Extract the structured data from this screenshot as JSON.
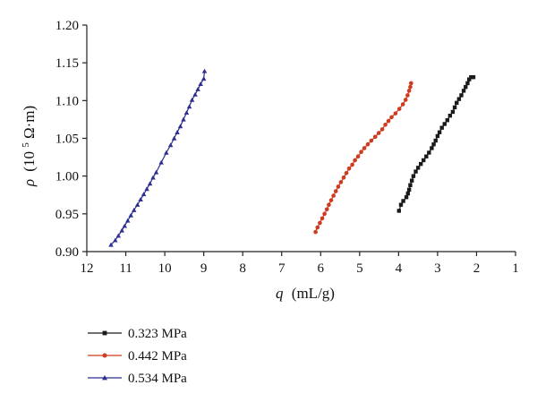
{
  "chart_data": {
    "type": "scatter",
    "title": "",
    "xlabel_var": "q",
    "xlabel_unit": "(mL/g)",
    "ylabel_var": "ρ",
    "ylabel_unit_open": "(10",
    "ylabel_unit_exp": "5",
    "ylabel_unit_close": " Ω·m)",
    "x_reversed": true,
    "xlim": [
      12,
      1
    ],
    "ylim": [
      0.9,
      1.2
    ],
    "x_ticks": [
      "12",
      "11",
      "10",
      "9",
      "8",
      "7",
      "6",
      "5",
      "4",
      "3",
      "2",
      "1"
    ],
    "y_ticks": [
      "0.90",
      "0.95",
      "1.00",
      "1.05",
      "1.10",
      "1.15",
      "1.20"
    ],
    "grid": false,
    "legend_position": "bottom-left",
    "series": [
      {
        "name": "0.323 MPa",
        "color": "#1a1a1a",
        "marker": "square",
        "points": [
          [
            3.99,
            0.954
          ],
          [
            3.94,
            0.962
          ],
          [
            3.88,
            0.967
          ],
          [
            3.8,
            0.972
          ],
          [
            3.76,
            0.977
          ],
          [
            3.73,
            0.982
          ],
          [
            3.7,
            0.988
          ],
          [
            3.66,
            0.994
          ],
          [
            3.62,
            1.0
          ],
          [
            3.56,
            1.006
          ],
          [
            3.5,
            1.011
          ],
          [
            3.43,
            1.016
          ],
          [
            3.36,
            1.021
          ],
          [
            3.29,
            1.026
          ],
          [
            3.22,
            1.031
          ],
          [
            3.15,
            1.037
          ],
          [
            3.1,
            1.042
          ],
          [
            3.05,
            1.047
          ],
          [
            3.0,
            1.053
          ],
          [
            2.95,
            1.058
          ],
          [
            2.89,
            1.064
          ],
          [
            2.82,
            1.069
          ],
          [
            2.75,
            1.074
          ],
          [
            2.68,
            1.08
          ],
          [
            2.61,
            1.085
          ],
          [
            2.56,
            1.091
          ],
          [
            2.51,
            1.097
          ],
          [
            2.45,
            1.102
          ],
          [
            2.39,
            1.107
          ],
          [
            2.33,
            1.113
          ],
          [
            2.28,
            1.118
          ],
          [
            2.23,
            1.123
          ],
          [
            2.19,
            1.128
          ],
          [
            2.14,
            1.131
          ],
          [
            2.08,
            1.131
          ]
        ]
      },
      {
        "name": "0.442 MPa",
        "color": "#d03a1f",
        "marker": "circle",
        "points": [
          [
            6.13,
            0.926
          ],
          [
            6.08,
            0.932
          ],
          [
            6.02,
            0.938
          ],
          [
            5.96,
            0.944
          ],
          [
            5.9,
            0.95
          ],
          [
            5.84,
            0.956
          ],
          [
            5.79,
            0.962
          ],
          [
            5.73,
            0.968
          ],
          [
            5.67,
            0.974
          ],
          [
            5.61,
            0.98
          ],
          [
            5.55,
            0.986
          ],
          [
            5.48,
            0.992
          ],
          [
            5.41,
            0.998
          ],
          [
            5.34,
            1.004
          ],
          [
            5.27,
            1.01
          ],
          [
            5.19,
            1.015
          ],
          [
            5.12,
            1.021
          ],
          [
            5.04,
            1.026
          ],
          [
            4.96,
            1.032
          ],
          [
            4.88,
            1.037
          ],
          [
            4.79,
            1.042
          ],
          [
            4.7,
            1.047
          ],
          [
            4.6,
            1.052
          ],
          [
            4.51,
            1.057
          ],
          [
            4.42,
            1.062
          ],
          [
            4.34,
            1.068
          ],
          [
            4.26,
            1.073
          ],
          [
            4.18,
            1.078
          ],
          [
            4.08,
            1.083
          ],
          [
            3.98,
            1.089
          ],
          [
            3.89,
            1.095
          ],
          [
            3.82,
            1.101
          ],
          [
            3.77,
            1.107
          ],
          [
            3.73,
            1.113
          ],
          [
            3.7,
            1.118
          ],
          [
            3.68,
            1.123
          ]
        ]
      },
      {
        "name": "0.534 MPa",
        "color": "#2b2f8f",
        "marker": "triangle",
        "points": [
          [
            11.38,
            0.909
          ],
          [
            11.27,
            0.915
          ],
          [
            11.19,
            0.921
          ],
          [
            11.1,
            0.928
          ],
          [
            11.03,
            0.934
          ],
          [
            10.95,
            0.941
          ],
          [
            10.87,
            0.948
          ],
          [
            10.79,
            0.955
          ],
          [
            10.7,
            0.962
          ],
          [
            10.62,
            0.969
          ],
          [
            10.54,
            0.976
          ],
          [
            10.46,
            0.983
          ],
          [
            10.38,
            0.99
          ],
          [
            10.3,
            0.998
          ],
          [
            10.22,
            1.005
          ],
          [
            10.09,
            1.018
          ],
          [
            9.96,
            1.031
          ],
          [
            9.85,
            1.041
          ],
          [
            9.76,
            1.05
          ],
          [
            9.68,
            1.058
          ],
          [
            9.6,
            1.066
          ],
          [
            9.52,
            1.075
          ],
          [
            9.44,
            1.084
          ],
          [
            9.37,
            1.092
          ],
          [
            9.3,
            1.101
          ],
          [
            9.22,
            1.108
          ],
          [
            9.15,
            1.115
          ],
          [
            9.08,
            1.122
          ],
          [
            9.0,
            1.129
          ],
          [
            8.98,
            1.139
          ]
        ]
      }
    ]
  }
}
